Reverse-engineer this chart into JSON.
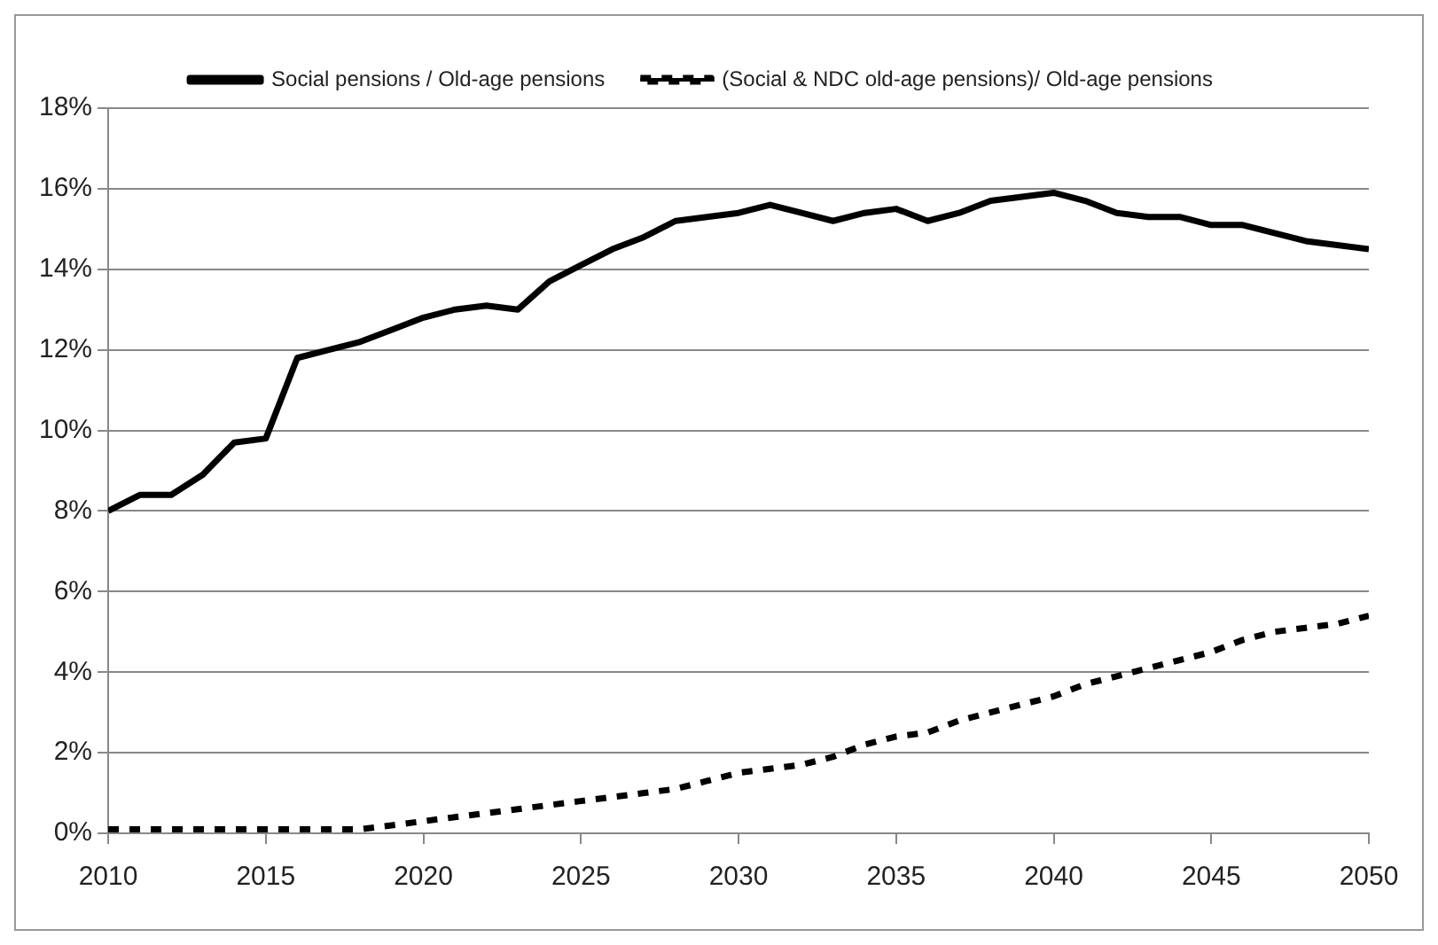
{
  "chart_data": {
    "type": "line",
    "legend": "top",
    "grid": "y",
    "marker": "none",
    "x": [
      2010,
      2011,
      2012,
      2013,
      2014,
      2015,
      2016,
      2017,
      2018,
      2019,
      2020,
      2021,
      2022,
      2023,
      2024,
      2025,
      2026,
      2027,
      2028,
      2029,
      2030,
      2031,
      2032,
      2033,
      2034,
      2035,
      2036,
      2037,
      2038,
      2039,
      2040,
      2041,
      2042,
      2043,
      2044,
      2045,
      2046,
      2047,
      2048,
      2049,
      2050
    ],
    "series": [
      {
        "name": "Social pensions / Old-age pensions",
        "color": "#000000",
        "line_style": "solid",
        "values": [
          8.0,
          8.4,
          8.4,
          8.9,
          9.7,
          9.8,
          11.8,
          12.0,
          12.2,
          12.5,
          12.8,
          13.0,
          13.1,
          13.0,
          13.7,
          14.1,
          14.5,
          14.8,
          15.2,
          15.3,
          15.4,
          15.6,
          15.4,
          15.2,
          15.4,
          15.5,
          15.2,
          15.4,
          15.7,
          15.8,
          15.9,
          15.7,
          15.4,
          15.3,
          15.3,
          15.1,
          15.1,
          14.9,
          14.7,
          14.6,
          14.5
        ]
      },
      {
        "name": "(Social & NDC old-age pensions)/ Old-age pensions",
        "color": "#000000",
        "line_style": "dashed",
        "values": [
          0.1,
          0.1,
          0.1,
          0.1,
          0.1,
          0.1,
          0.1,
          0.1,
          0.1,
          0.2,
          0.3,
          0.4,
          0.5,
          0.6,
          0.7,
          0.8,
          0.9,
          1.0,
          1.1,
          1.3,
          1.5,
          1.6,
          1.7,
          1.9,
          2.2,
          2.4,
          2.5,
          2.8,
          3.0,
          3.2,
          3.4,
          3.7,
          3.9,
          4.1,
          4.3,
          4.5,
          4.8,
          5.0,
          5.1,
          5.2,
          5.4
        ]
      }
    ],
    "xlim": [
      2010,
      2050
    ],
    "xticks": [
      2010,
      2015,
      2020,
      2025,
      2030,
      2035,
      2040,
      2045,
      2050
    ],
    "ylim": [
      0,
      18
    ],
    "yticks": [
      {
        "value": 0,
        "label": "0%"
      },
      {
        "value": 2,
        "label": "2%"
      },
      {
        "value": 4,
        "label": "4%"
      },
      {
        "value": 6,
        "label": "6%"
      },
      {
        "value": 8,
        "label": "8%"
      },
      {
        "value": 10,
        "label": "10%"
      },
      {
        "value": 12,
        "label": "12%"
      },
      {
        "value": 14,
        "label": "14%"
      },
      {
        "value": 16,
        "label": "16%"
      },
      {
        "value": 18,
        "label": "18%"
      }
    ]
  }
}
